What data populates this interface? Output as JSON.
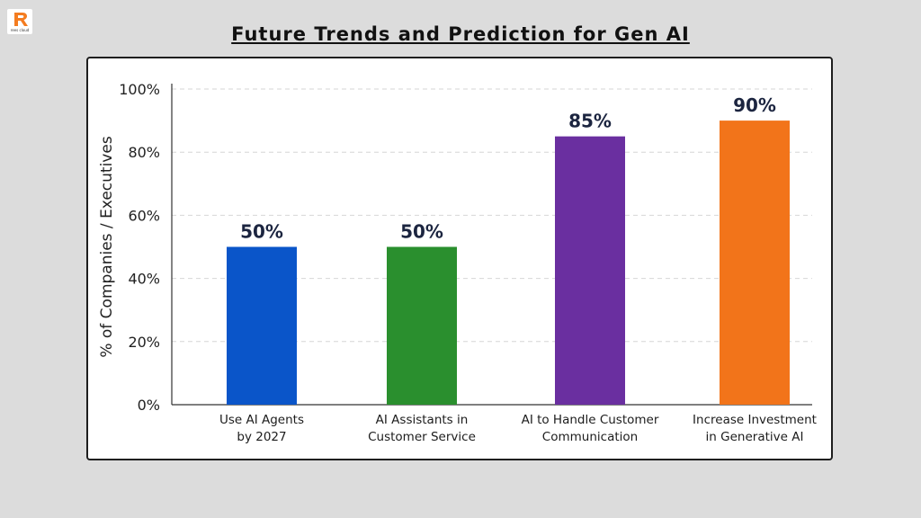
{
  "logo": {
    "text": "rees cloud",
    "color": "#f47c20"
  },
  "title": "Future Trends and Prediction for Gen AI",
  "chart_data": {
    "type": "bar",
    "ylabel": "% of Companies / Executives",
    "xlabel": "",
    "ylim": [
      0,
      100
    ],
    "yticks": [
      "0%",
      "20%",
      "40%",
      "60%",
      "80%",
      "100%"
    ],
    "grid": "horizontal dashed",
    "categories": [
      [
        "Use AI Agents",
        "by 2027"
      ],
      [
        "AI Assistants in",
        "Customer Service"
      ],
      [
        "AI to Handle Customer",
        "Communication"
      ],
      [
        "Increase Investment",
        "in Generative AI"
      ]
    ],
    "values": [
      50,
      50,
      85,
      90
    ],
    "data_labels": [
      "50%",
      "50%",
      "85%",
      "90%"
    ],
    "colors": [
      "#0a55c9",
      "#2a8f2e",
      "#6a2fa0",
      "#f2741a"
    ]
  }
}
